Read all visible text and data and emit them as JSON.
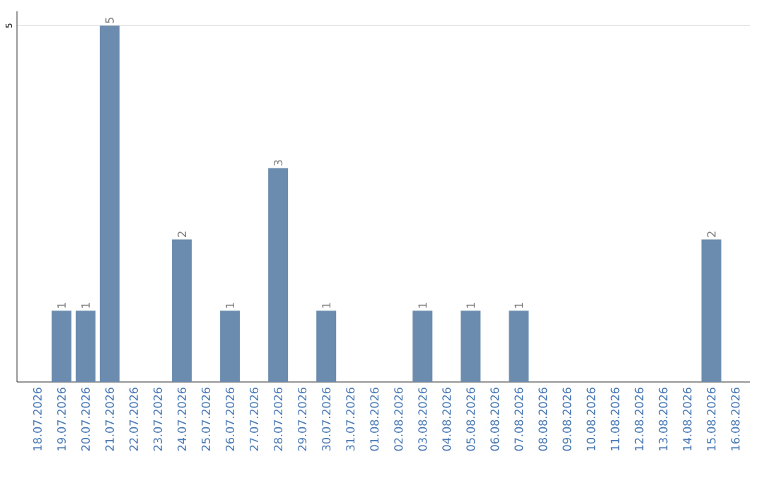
{
  "chart_data": {
    "type": "bar",
    "categories": [
      "18.07.2026",
      "19.07.2026",
      "20.07.2026",
      "21.07.2026",
      "22.07.2026",
      "23.07.2026",
      "24.07.2026",
      "25.07.2026",
      "26.07.2026",
      "27.07.2026",
      "28.07.2026",
      "29.07.2026",
      "30.07.2026",
      "31.07.2026",
      "01.08.2026",
      "02.08.2026",
      "03.08.2026",
      "04.08.2026",
      "05.08.2026",
      "06.08.2026",
      "07.08.2026",
      "08.08.2026",
      "09.08.2026",
      "10.08.2026",
      "11.08.2026",
      "12.08.2026",
      "13.08.2026",
      "14.08.2026",
      "15.08.2026",
      "16.08.2026"
    ],
    "values": [
      0,
      1,
      1,
      5,
      0,
      0,
      2,
      0,
      1,
      0,
      3,
      0,
      1,
      0,
      0,
      0,
      1,
      0,
      1,
      0,
      1,
      0,
      0,
      0,
      0,
      0,
      0,
      0,
      2,
      0
    ],
    "value_labels": [
      null,
      "1",
      "1",
      "5",
      null,
      null,
      "2",
      null,
      "1",
      null,
      "3",
      null,
      "1",
      null,
      null,
      null,
      "1",
      null,
      "1",
      null,
      "1",
      null,
      null,
      null,
      null,
      null,
      null,
      null,
      "2",
      null
    ],
    "color": "#6b8cae",
    "ylim": [
      0,
      5.2
    ],
    "yticks": [
      5
    ],
    "grid": "y"
  }
}
